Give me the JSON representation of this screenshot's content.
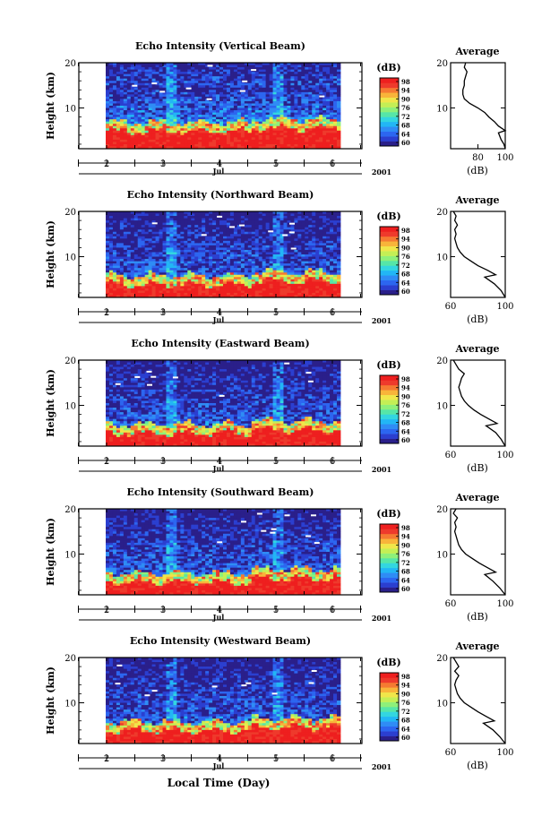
{
  "colors": {
    "scale": [
      "#2a1f8a",
      "#2b3fd0",
      "#2c66f0",
      "#2f8cf5",
      "#22b6f5",
      "#33d6e0",
      "#56e6a8",
      "#8ef07a",
      "#c4ef55",
      "#f0e64a",
      "#f8b43a",
      "#f57a32",
      "#ee3a2c",
      "#ee1f1f"
    ]
  },
  "chart_data": [
    {
      "type": "heatmap",
      "title": "Echo Intensity (Vertical Beam)",
      "ylabel": "Height (km)",
      "xlabel": "",
      "x_ticks": [
        "2",
        "3",
        "4",
        "5",
        "6"
      ],
      "x_month": "Jul",
      "x_year": "2001",
      "y_ticks": [
        "20",
        "10"
      ],
      "ylim": [
        1,
        20
      ],
      "colorbar": {
        "label": "(dB)",
        "ticks": [
          "98",
          "94",
          "90",
          "76",
          "72",
          "68",
          "64",
          "60"
        ],
        "range": [
          60,
          100
        ]
      },
      "profile": {
        "title": "Average",
        "xlabel": "(dB)",
        "x_ticks": [
          "80",
          "100"
        ],
        "y_ticks": [
          "20",
          "10"
        ],
        "xlim": [
          60,
          100
        ],
        "ylim": [
          1,
          20
        ],
        "points": [
          [
            71,
            20
          ],
          [
            70,
            19
          ],
          [
            72,
            18
          ],
          [
            70,
            16
          ],
          [
            70,
            15
          ],
          [
            69,
            14
          ],
          [
            69,
            13
          ],
          [
            70,
            12
          ],
          [
            74,
            11
          ],
          [
            80,
            10
          ],
          [
            85,
            9
          ],
          [
            88,
            8
          ],
          [
            92,
            7
          ],
          [
            95,
            6
          ],
          [
            100,
            5
          ],
          [
            95,
            4.5
          ],
          [
            97,
            3
          ],
          [
            99,
            2
          ],
          [
            100,
            1
          ]
        ]
      }
    },
    {
      "type": "heatmap",
      "title": "Echo Intensity (Northward Beam)",
      "ylabel": "Height (km)",
      "xlabel": "",
      "x_ticks": [
        "2",
        "3",
        "4",
        "5",
        "6"
      ],
      "x_month": "Jul",
      "x_year": "2001",
      "y_ticks": [
        "20",
        "10"
      ],
      "ylim": [
        1,
        20
      ],
      "colorbar": {
        "label": "(dB)",
        "ticks": [
          "98",
          "94",
          "90",
          "76",
          "72",
          "68",
          "64",
          "60"
        ],
        "range": [
          60,
          100
        ]
      },
      "profile": {
        "title": "Average",
        "xlabel": "(dB)",
        "x_ticks": [
          "60",
          "100"
        ],
        "y_ticks": [
          "20",
          "10"
        ],
        "xlim": [
          60,
          100
        ],
        "ylim": [
          1,
          20
        ],
        "points": [
          [
            62,
            20
          ],
          [
            64,
            19
          ],
          [
            63,
            18
          ],
          [
            65,
            17
          ],
          [
            63,
            16
          ],
          [
            64,
            15
          ],
          [
            63,
            14
          ],
          [
            64,
            13
          ],
          [
            65,
            12
          ],
          [
            67,
            11
          ],
          [
            70,
            10
          ],
          [
            75,
            9
          ],
          [
            80,
            8
          ],
          [
            87,
            7
          ],
          [
            93,
            6
          ],
          [
            85,
            5.5
          ],
          [
            92,
            4
          ],
          [
            97,
            2.5
          ],
          [
            100,
            1
          ]
        ]
      }
    },
    {
      "type": "heatmap",
      "title": "Echo Intensity (Eastward Beam)",
      "ylabel": "Height (km)",
      "xlabel": "",
      "x_ticks": [
        "2",
        "3",
        "4",
        "5",
        "6"
      ],
      "x_month": "Jul",
      "x_year": "2001",
      "y_ticks": [
        "20",
        "10"
      ],
      "ylim": [
        1,
        20
      ],
      "colorbar": {
        "label": "(dB)",
        "ticks": [
          "98",
          "94",
          "90",
          "76",
          "72",
          "68",
          "64",
          "60"
        ],
        "range": [
          60,
          100
        ]
      },
      "profile": {
        "title": "Average",
        "xlabel": "(dB)",
        "x_ticks": [
          "60",
          "100"
        ],
        "y_ticks": [
          "20",
          "10"
        ],
        "xlim": [
          60,
          100
        ],
        "ylim": [
          1,
          20
        ],
        "points": [
          [
            62,
            20
          ],
          [
            64,
            19
          ],
          [
            66,
            18
          ],
          [
            70,
            17
          ],
          [
            68,
            16
          ],
          [
            67,
            15
          ],
          [
            66,
            14
          ],
          [
            67,
            13
          ],
          [
            68,
            12
          ],
          [
            70,
            11
          ],
          [
            73,
            10
          ],
          [
            77,
            9
          ],
          [
            82,
            8
          ],
          [
            88,
            7
          ],
          [
            94,
            6
          ],
          [
            86,
            5.5
          ],
          [
            93,
            4
          ],
          [
            97,
            2.5
          ],
          [
            100,
            1
          ]
        ]
      }
    },
    {
      "type": "heatmap",
      "title": "Echo Intensity (Southward Beam)",
      "ylabel": "Height (km)",
      "xlabel": "",
      "x_ticks": [
        "2",
        "3",
        "4",
        "5",
        "6"
      ],
      "x_month": "Jul",
      "x_year": "2001",
      "y_ticks": [
        "20",
        "10"
      ],
      "ylim": [
        1,
        20
      ],
      "colorbar": {
        "label": "(dB)",
        "ticks": [
          "98",
          "94",
          "90",
          "76",
          "72",
          "68",
          "64",
          "60"
        ],
        "range": [
          60,
          100
        ]
      },
      "profile": {
        "title": "Average",
        "xlabel": "(dB)",
        "x_ticks": [
          "60",
          "100"
        ],
        "y_ticks": [
          "20",
          "10"
        ],
        "xlim": [
          60,
          100
        ],
        "ylim": [
          1,
          20
        ],
        "points": [
          [
            64,
            20
          ],
          [
            62,
            19
          ],
          [
            65,
            18
          ],
          [
            63,
            17
          ],
          [
            64,
            16
          ],
          [
            63,
            15
          ],
          [
            64,
            14
          ],
          [
            65,
            13
          ],
          [
            66,
            12
          ],
          [
            68,
            11
          ],
          [
            71,
            10
          ],
          [
            76,
            9
          ],
          [
            81,
            8
          ],
          [
            87,
            7
          ],
          [
            93,
            6
          ],
          [
            85,
            5.5
          ],
          [
            91,
            4
          ],
          [
            96,
            2.5
          ],
          [
            100,
            1
          ]
        ]
      }
    },
    {
      "type": "heatmap",
      "title": "Echo Intensity (Westward Beam)",
      "ylabel": "Height (km)",
      "xlabel": "Local Time (Day)",
      "x_ticks": [
        "2",
        "3",
        "4",
        "5",
        "6"
      ],
      "x_month": "Jul",
      "x_year": "2001",
      "y_ticks": [
        "20",
        "10"
      ],
      "ylim": [
        1,
        20
      ],
      "colorbar": {
        "label": "(dB)",
        "ticks": [
          "98",
          "94",
          "90",
          "76",
          "72",
          "68",
          "64",
          "60"
        ],
        "range": [
          60,
          100
        ]
      },
      "profile": {
        "title": "Average",
        "xlabel": "(dB)",
        "x_ticks": [
          "60",
          "100"
        ],
        "y_ticks": [
          "20",
          "10"
        ],
        "xlim": [
          60,
          100
        ],
        "ylim": [
          1,
          20
        ],
        "points": [
          [
            62,
            20
          ],
          [
            64,
            19
          ],
          [
            66,
            18
          ],
          [
            63,
            17
          ],
          [
            66,
            16
          ],
          [
            64,
            15
          ],
          [
            63,
            14
          ],
          [
            64,
            13
          ],
          [
            65,
            12
          ],
          [
            67,
            11
          ],
          [
            70,
            10
          ],
          [
            75,
            9
          ],
          [
            80,
            8
          ],
          [
            86,
            7
          ],
          [
            92,
            6
          ],
          [
            84,
            5.5
          ],
          [
            91,
            4
          ],
          [
            96,
            2.5
          ],
          [
            100,
            1
          ]
        ]
      }
    }
  ]
}
